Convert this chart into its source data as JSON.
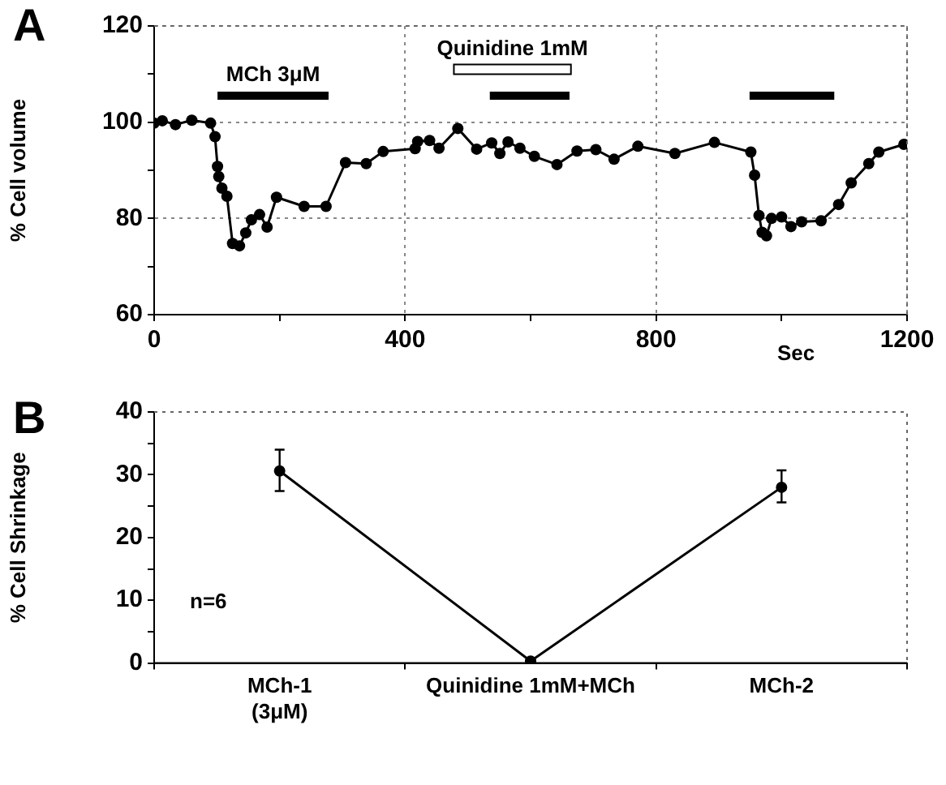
{
  "chart_data": [
    {
      "type": "line",
      "title": "A",
      "xlabel": "Sec",
      "ylabel": "% Cell volume",
      "xlim": [
        0,
        1200
      ],
      "ylim": [
        60,
        120
      ],
      "xticks": [
        0,
        {
          "value": 200,
          "label": null
        },
        400,
        {
          "value": 600,
          "label": null
        },
        800,
        {
          "value": 1000,
          "label": null
        },
        1200
      ],
      "yticks": [
        60,
        {
          "value": 70,
          "label": null
        },
        80,
        {
          "value": 90,
          "label": null
        },
        100,
        {
          "value": 110,
          "label": null
        },
        120
      ],
      "grid": true,
      "legend": false,
      "marker": "circle",
      "line_style": "solid",
      "series": [
        {
          "x": [
            0,
            13,
            34,
            60,
            90,
            97,
            101,
            103,
            108,
            116,
            125,
            136,
            146,
            155,
            168,
            180,
            195,
            239,
            274,
            305,
            338,
            365,
            416,
            420,
            439,
            454,
            484,
            514,
            538,
            551,
            564,
            583,
            606,
            642,
            674,
            704,
            733,
            771,
            830,
            893,
            951,
            957,
            964,
            969,
            976,
            984,
            1000,
            1015,
            1032,
            1063,
            1091,
            1111,
            1139,
            1155,
            1195
          ],
          "values": [
            99.8,
            100.3,
            99.5,
            100.4,
            99.8,
            97,
            90.8,
            88.7,
            86.3,
            84.6,
            74.8,
            74.3,
            77,
            79.7,
            80.8,
            78.2,
            84.4,
            82.5,
            82.5,
            91.6,
            91.4,
            93.9,
            94.5,
            96,
            96.2,
            94.6,
            98.7,
            94.4,
            95.7,
            93.5,
            95.9,
            94.6,
            92.9,
            91.2,
            94,
            94.3,
            92.3,
            95,
            93.5,
            95.8,
            93.8,
            89,
            80.6,
            77.1,
            76.4,
            80,
            80.3,
            78.3,
            79.3,
            79.5,
            82.9,
            87.4,
            91.4,
            93.8,
            95.4
          ],
          "color": "#000000"
        },
        {
          "type": "line",
          "name": "MCh 3μM",
          "x": [
            101,
            278
          ],
          "values": [
            105.5,
            105.5
          ],
          "color": "#000000",
          "marker": "none"
        },
        {
          "type": "line",
          "name": "Quinidine 1mM",
          "x": [
            479,
            663
          ],
          "values": [
            111,
            111
          ],
          "color": "#ffffff",
          "marker": "none"
        },
        {
          "type": "line",
          "x": [
            535,
            662
          ],
          "values": [
            105.5,
            105.5
          ],
          "color": "#000000",
          "marker": "none"
        },
        {
          "type": "line",
          "x": [
            949,
            1084
          ],
          "values": [
            105.5,
            105.5
          ],
          "color": "#000000",
          "marker": "none"
        }
      ]
    },
    {
      "type": "line",
      "title": "B",
      "ylabel": "% Cell Shrinkage",
      "categories": [
        "MCh-1\n(3μM)",
        "Quinidine 1mM+MCh",
        "MCh-2"
      ],
      "ylim": [
        0,
        40
      ],
      "yticks": [
        0,
        {
          "value": 5,
          "label": null
        },
        10,
        {
          "value": 15,
          "label": null
        },
        20,
        {
          "value": 25,
          "label": null
        },
        30,
        {
          "value": 35,
          "label": null
        },
        40
      ],
      "grid": false,
      "legend": false,
      "marker": "circle",
      "line_style": "solid",
      "values": [
        30.6,
        0.3,
        28
      ],
      "errors": [
        [
          27.4,
          34
        ],
        null,
        [
          25.6,
          30.7
        ]
      ],
      "color": "#000000",
      "annotations": [
        "n=6"
      ]
    }
  ]
}
